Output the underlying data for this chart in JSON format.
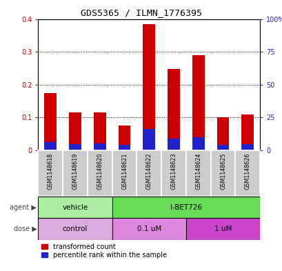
{
  "title": "GDS5365 / ILMN_1776395",
  "samples": [
    "GSM1148618",
    "GSM1148619",
    "GSM1148620",
    "GSM1148621",
    "GSM1148622",
    "GSM1148623",
    "GSM1148624",
    "GSM1148625",
    "GSM1148626"
  ],
  "transformed_count": [
    0.175,
    0.115,
    0.115,
    0.075,
    0.385,
    0.247,
    0.29,
    0.1,
    0.11
  ],
  "percentile_rank": [
    0.025,
    0.02,
    0.022,
    0.018,
    0.065,
    0.035,
    0.04,
    0.018,
    0.02
  ],
  "ylim_left": [
    0,
    0.4
  ],
  "ylim_right": [
    0,
    100
  ],
  "yticks_left": [
    0,
    0.1,
    0.2,
    0.3,
    0.4
  ],
  "yticks_right": [
    0,
    25,
    50,
    75,
    100
  ],
  "ytick_labels_left": [
    "0",
    "0.1",
    "0.2",
    "0.3",
    "0.4"
  ],
  "ytick_labels_right": [
    "0",
    "25",
    "50",
    "75",
    "100%"
  ],
  "bar_color_red": "#cc0000",
  "bar_color_blue": "#2222cc",
  "agent_labels": [
    "vehicle",
    "I-BET726"
  ],
  "dose_labels": [
    "control",
    "0.1 uM",
    "1 uM"
  ],
  "agent_color_vehicle": "#aaeea0",
  "agent_color_ibet": "#66dd55",
  "dose_color_control": "#ddaadd",
  "dose_color_01uM": "#dd88dd",
  "dose_color_1uM": "#cc44cc",
  "sample_box_color": "#cccccc",
  "background_color": "#ffffff",
  "bar_width": 0.5,
  "legend_red_label": "transformed count",
  "legend_blue_label": "percentile rank within the sample"
}
